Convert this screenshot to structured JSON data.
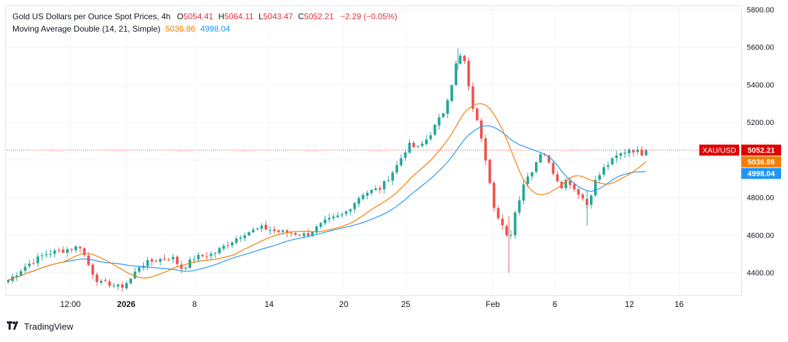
{
  "legend": {
    "title": "Gold US Dollars per Ounce Spot Prices, 4h",
    "o_label": "O",
    "o": "5054.41",
    "h_label": "H",
    "h": "5064.11",
    "l_label": "L",
    "l": "5043.47",
    "c_label": "C",
    "c": "5052.21",
    "change": "−2.29 (−0.05%)",
    "ma_label": "Moving Average Double (14, 21, Simple)",
    "ma1": "5036.86",
    "ma2": "4998.04"
  },
  "watermark": {
    "text": "TradingView"
  },
  "colors": {
    "up": "#26a69a",
    "down": "#ef5350",
    "ma_fast": "#f57c00",
    "ma_slow": "#2196f3",
    "price_line": "#e53935",
    "symbol_tag": "#e00000"
  },
  "chart_data": {
    "type": "candlestick",
    "symbol": "XAU/USD",
    "y_ticks": [
      4400,
      4600,
      4800,
      5000,
      5200,
      5400,
      5600,
      5800
    ],
    "y_tick_labels": [
      "4400.00",
      "4600.00",
      "4800.00",
      "5000.00",
      "5200.00",
      "5400.00",
      "5600.00",
      "5800.00"
    ],
    "ylim": [
      4320,
      5810
    ],
    "x_range": [
      -5,
      54
    ],
    "x_ticks": [
      {
        "label": "12:00",
        "x": 0,
        "bold": false
      },
      {
        "label": "2026",
        "x": 4.5,
        "bold": true
      },
      {
        "label": "8",
        "x": 10,
        "bold": false
      },
      {
        "label": "14",
        "x": 16,
        "bold": false
      },
      {
        "label": "20",
        "x": 22,
        "bold": false
      },
      {
        "label": "25",
        "x": 27,
        "bold": false
      },
      {
        "label": "Feb",
        "x": 34,
        "bold": false
      },
      {
        "label": "6",
        "x": 39,
        "bold": false
      },
      {
        "label": "12",
        "x": 45,
        "bold": false
      },
      {
        "label": "16",
        "x": 49,
        "bold": false
      }
    ],
    "close_anchors": [
      [
        -5,
        4360
      ],
      [
        -3.5,
        4440
      ],
      [
        -2,
        4500
      ],
      [
        -0.5,
        4520
      ],
      [
        0.8,
        4540
      ],
      [
        1.6,
        4420
      ],
      [
        2.3,
        4345
      ],
      [
        3.2,
        4340
      ],
      [
        4,
        4320
      ],
      [
        4.8,
        4360
      ],
      [
        5.6,
        4440
      ],
      [
        7,
        4470
      ],
      [
        8.2,
        4480
      ],
      [
        9,
        4420
      ],
      [
        10,
        4480
      ],
      [
        11.5,
        4500
      ],
      [
        12.8,
        4560
      ],
      [
        14,
        4610
      ],
      [
        15.5,
        4640
      ],
      [
        16.5,
        4620
      ],
      [
        18,
        4610
      ],
      [
        19,
        4600
      ],
      [
        20.5,
        4670
      ],
      [
        22,
        4710
      ],
      [
        23.5,
        4820
      ],
      [
        25,
        4850
      ],
      [
        26.2,
        4960
      ],
      [
        27.2,
        5080
      ],
      [
        28,
        5060
      ],
      [
        28.8,
        5120
      ],
      [
        30,
        5250
      ],
      [
        30.8,
        5430
      ],
      [
        31.2,
        5560
      ],
      [
        31.7,
        5530
      ],
      [
        32,
        5400
      ],
      [
        32.5,
        5250
      ],
      [
        33,
        5150
      ],
      [
        33.6,
        4950
      ],
      [
        34.2,
        4720
      ],
      [
        34.8,
        4640
      ],
      [
        35.3,
        4560
      ],
      [
        35.8,
        4720
      ],
      [
        36.5,
        4880
      ],
      [
        37.2,
        4950
      ],
      [
        38,
        5060
      ],
      [
        38.5,
        4980
      ],
      [
        39,
        4920
      ],
      [
        39.5,
        4860
      ],
      [
        40,
        4900
      ],
      [
        40.5,
        4850
      ],
      [
        41,
        4820
      ],
      [
        41.6,
        4760
      ],
      [
        42.2,
        4880
      ],
      [
        43,
        4960
      ],
      [
        44,
        5020
      ],
      [
        45,
        5060
      ],
      [
        46,
        5035
      ],
      [
        46.6,
        5052
      ]
    ],
    "last_price": 5052.21,
    "ma_fast_value": 5036.86,
    "ma_slow_value": 4998.04,
    "price_tags": [
      "5052.21",
      "5036.86",
      "4998.04"
    ]
  }
}
